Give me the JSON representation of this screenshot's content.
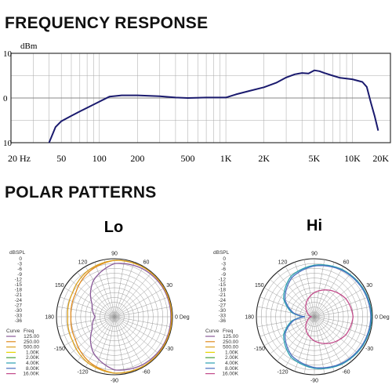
{
  "headings": {
    "frequency": "FREQUENCY RESPONSE",
    "polar": "POLAR PATTERNS"
  },
  "chart_data": [
    {
      "type": "line",
      "title": "FREQUENCY RESPONSE",
      "ylabel": "dBm",
      "x_scale": "log",
      "xlim": [
        20,
        20000
      ],
      "ylim": [
        -10,
        10
      ],
      "x_tick_labels": [
        "20 Hz",
        "50",
        "100",
        "200",
        "500",
        "1K",
        "2K",
        "5K",
        "10K",
        "20K"
      ],
      "x_tick_values": [
        20,
        50,
        100,
        200,
        500,
        1000,
        2000,
        5000,
        10000,
        20000
      ],
      "y_tick_labels": [
        "10",
        "0",
        "10"
      ],
      "y_tick_values": [
        10,
        0,
        -10
      ],
      "grid": true,
      "line_color": "#1a1a6e",
      "series": [
        {
          "x": [
            40,
            45,
            50,
            60,
            70,
            80,
            100,
            120,
            150,
            200,
            300,
            400,
            500,
            700,
            1000,
            1200,
            1500,
            2000,
            2500,
            3000,
            3500,
            4000,
            4500,
            5000,
            5500,
            6000,
            7000,
            8000,
            10000,
            12000,
            13000,
            14000,
            15000,
            16000
          ],
          "y": [
            -10,
            -6.5,
            -5.2,
            -4.0,
            -3.0,
            -2.2,
            -0.8,
            0.3,
            0.6,
            0.6,
            0.4,
            0.1,
            0.0,
            0.1,
            0.1,
            0.8,
            1.5,
            2.4,
            3.4,
            4.6,
            5.3,
            5.6,
            5.5,
            6.2,
            6.0,
            5.6,
            5.0,
            4.5,
            4.2,
            3.6,
            2.5,
            -1.0,
            -4.0,
            -7.3
          ]
        }
      ]
    },
    {
      "type": "polar",
      "title": "Lo",
      "r_label": "dBSPL",
      "r_tick_labels": [
        "0",
        "-3",
        "-6",
        "-9",
        "-12",
        "-15",
        "-18",
        "-21",
        "-24",
        "-27",
        "-30",
        "-33",
        "-36"
      ],
      "rlim": [
        -36,
        0
      ],
      "angle_labels": [
        "90",
        "60",
        "30",
        "0 Deg",
        "-30",
        "-60",
        "-90",
        "-120",
        "-150",
        "180",
        "150",
        "120"
      ],
      "angle_values": [
        90,
        60,
        30,
        0,
        -30,
        -60,
        -90,
        -120,
        -150,
        180,
        150,
        120
      ],
      "legend_header": [
        "Curve",
        "Freq"
      ],
      "legend": [
        {
          "freq": "125.00",
          "color": "#8a5a9a"
        },
        {
          "freq": "250.00",
          "color": "#e08a1e"
        },
        {
          "freq": "500.00",
          "color": "#d9a020"
        },
        {
          "freq": "1.00K",
          "color": "#e6d400"
        },
        {
          "freq": "2.00K",
          "color": "#4a9e3a"
        },
        {
          "freq": "4.00K",
          "color": "#2aa0b0"
        },
        {
          "freq": "8.00K",
          "color": "#4a6fc0"
        },
        {
          "freq": "16.00K",
          "color": "#c24a8a"
        }
      ],
      "series": [
        {
          "freq": "125.00",
          "color": "#8a5a9a",
          "angle": [
            0,
            30,
            60,
            90,
            120,
            150,
            180,
            210,
            240,
            270,
            300,
            330
          ],
          "db": [
            -1,
            -1,
            -1.5,
            -3,
            -10,
            -20,
            -24,
            -20,
            -10,
            -3,
            -1.5,
            -1
          ]
        },
        {
          "freq": "250.00",
          "color": "#e08a1e",
          "angle": [
            0,
            30,
            60,
            90,
            120,
            150,
            180,
            210,
            240,
            270,
            300,
            330
          ],
          "db": [
            -0.5,
            -0.5,
            -0.5,
            -1,
            -4,
            -8,
            -9,
            -8,
            -4,
            -1,
            -0.5,
            -0.5
          ]
        },
        {
          "freq": "500.00",
          "color": "#d9a020",
          "angle": [
            0,
            30,
            60,
            90,
            120,
            150,
            180,
            210,
            240,
            270,
            300,
            330
          ],
          "db": [
            -0.5,
            -0.5,
            -0.5,
            -1,
            -3,
            -6,
            -7,
            -6,
            -3,
            -1,
            -0.5,
            -0.5
          ]
        }
      ]
    },
    {
      "type": "polar",
      "title": "Hi",
      "r_label": "dBSPL",
      "r_tick_labels": [
        "0",
        "-3",
        "-6",
        "-9",
        "-12",
        "-15",
        "-18",
        "-21",
        "-24",
        "-27",
        "-30",
        "-33",
        "-36"
      ],
      "rlim": [
        -36,
        0
      ],
      "angle_labels": [
        "90",
        "60",
        "30",
        "0 Deg",
        "-30",
        "-60",
        "-90",
        "-120",
        "-150",
        "180",
        "150",
        "120"
      ],
      "angle_values": [
        90,
        60,
        30,
        0,
        -30,
        -60,
        -90,
        -120,
        -150,
        180,
        150,
        120
      ],
      "legend_header": [
        "Curve",
        "Freq"
      ],
      "legend": [
        {
          "freq": "125.00",
          "color": "#8a5a9a"
        },
        {
          "freq": "250.00",
          "color": "#e08a1e"
        },
        {
          "freq": "500.00",
          "color": "#d9a020"
        },
        {
          "freq": "1.00K",
          "color": "#e6d400"
        },
        {
          "freq": "2.00K",
          "color": "#4a9e3a"
        },
        {
          "freq": "4.00K",
          "color": "#2aa0b0"
        },
        {
          "freq": "8.00K",
          "color": "#4a6fc0"
        },
        {
          "freq": "16.00K",
          "color": "#c24a8a"
        }
      ],
      "series": [
        {
          "freq": "4.00K",
          "color": "#2aa0b0",
          "angle": [
            0,
            30,
            60,
            90,
            120,
            150,
            170,
            180,
            190,
            210,
            240,
            270,
            300,
            330
          ],
          "db": [
            -0.5,
            -1,
            -2,
            -4,
            -7,
            -14,
            -22,
            -30,
            -22,
            -14,
            -7,
            -4,
            -2,
            -1
          ]
        },
        {
          "freq": "8.00K",
          "color": "#4a6fc0",
          "angle": [
            0,
            30,
            60,
            90,
            120,
            150,
            170,
            180,
            190,
            210,
            240,
            270,
            300,
            330
          ],
          "db": [
            -1,
            -1.5,
            -2.5,
            -4.5,
            -8,
            -15,
            -23,
            -30,
            -23,
            -15,
            -8,
            -4.5,
            -2.5,
            -1.5
          ]
        },
        {
          "freq": "16.00K",
          "color": "#c24a8a",
          "angle": [
            0,
            30,
            60,
            90,
            120,
            150,
            180,
            210,
            240,
            270,
            300,
            330
          ],
          "db": [
            -12,
            -13.5,
            -17,
            -21,
            -26,
            -31,
            -34,
            -31,
            -26,
            -21,
            -17,
            -13.5
          ]
        }
      ]
    }
  ]
}
